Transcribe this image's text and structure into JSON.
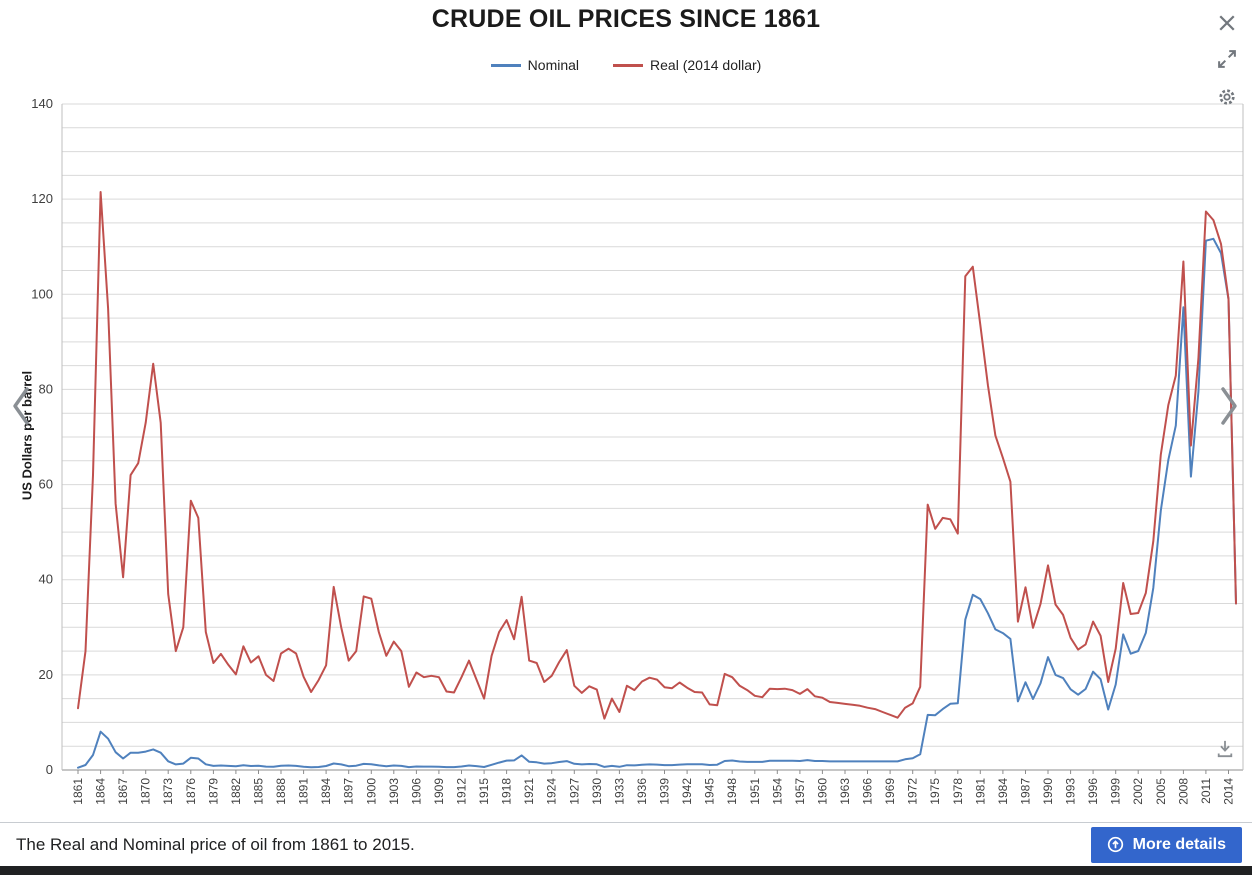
{
  "viewer": {
    "caption": "The Real and Nominal price of oil from 1861 to 2015.",
    "more_details_label": "More details",
    "accent_color": "#3366cc",
    "icon_color": "#72777d"
  },
  "chart_data": {
    "type": "line",
    "title": "CRUDE OIL PRICES SINCE 1861",
    "xlabel": "",
    "ylabel": "US Dollars per barrel",
    "ylim": [
      0,
      140
    ],
    "y_ticks": [
      0,
      20,
      40,
      60,
      80,
      100,
      120,
      140
    ],
    "gridline_step": 5,
    "grid": true,
    "legend_position": "top",
    "years_start": 1861,
    "years_end": 2015,
    "x_label_step": 3,
    "series": [
      {
        "name": "Nominal",
        "color": "#4F81BD",
        "values": [
          0.49,
          1.05,
          3.15,
          8.06,
          6.59,
          3.74,
          2.41,
          3.63,
          3.64,
          3.86,
          4.34,
          3.64,
          1.83,
          1.17,
          1.35,
          2.56,
          2.42,
          1.19,
          0.86,
          0.95,
          0.86,
          0.78,
          1.0,
          0.84,
          0.88,
          0.71,
          0.67,
          0.88,
          0.94,
          0.87,
          0.67,
          0.56,
          0.64,
          0.84,
          1.36,
          1.18,
          0.79,
          0.91,
          1.29,
          1.19,
          0.96,
          0.8,
          0.94,
          0.86,
          0.62,
          0.73,
          0.72,
          0.72,
          0.7,
          0.61,
          0.61,
          0.74,
          0.95,
          0.81,
          0.64,
          1.1,
          1.56,
          1.98,
          2.01,
          3.07,
          1.73,
          1.61,
          1.34,
          1.43,
          1.68,
          1.88,
          1.3,
          1.17,
          1.27,
          1.19,
          0.65,
          0.87,
          0.67,
          1.0,
          0.97,
          1.09,
          1.18,
          1.13,
          1.02,
          1.02,
          1.14,
          1.19,
          1.2,
          1.21,
          1.05,
          1.12,
          1.9,
          1.99,
          1.78,
          1.71,
          1.71,
          1.71,
          1.93,
          1.93,
          1.93,
          1.93,
          1.9,
          2.08,
          1.9,
          1.9,
          1.8,
          1.8,
          1.8,
          1.8,
          1.8,
          1.8,
          1.8,
          1.8,
          1.8,
          1.8,
          2.24,
          2.48,
          3.29,
          11.58,
          11.53,
          12.8,
          13.92,
          14.02,
          31.61,
          36.83,
          35.93,
          32.97,
          29.55,
          28.78,
          27.56,
          14.43,
          18.44,
          14.92,
          18.23,
          23.73,
          20.0,
          19.32,
          16.97,
          15.82,
          17.02,
          20.67,
          19.09,
          12.72,
          17.97,
          28.5,
          24.44,
          25.02,
          28.83,
          38.27,
          54.52,
          65.14,
          72.39,
          97.26,
          61.67,
          79.5,
          111.26,
          111.67,
          108.66,
          98.95,
          35.0
        ]
      },
      {
        "name": "Real (2014 dollar)",
        "color": "#C0504D",
        "values": [
          13,
          25,
          62,
          121.5,
          97,
          56,
          40.5,
          62,
          64.5,
          73,
          85.4,
          73,
          37,
          25,
          30,
          56.6,
          53,
          29,
          22.5,
          24.4,
          22.1,
          20.1,
          26,
          22.6,
          23.9,
          20,
          18.7,
          24.5,
          25.5,
          24.5,
          19.6,
          16.4,
          18.9,
          22,
          38.5,
          30,
          23,
          25,
          36.5,
          36,
          29,
          24,
          27,
          25,
          17.5,
          20.5,
          19.5,
          19.8,
          19.5,
          16.5,
          16.3,
          19.5,
          23,
          19,
          15,
          24,
          29,
          31.5,
          27.5,
          36.4,
          23,
          22.5,
          18.5,
          19.8,
          22.7,
          25.2,
          17.7,
          16.2,
          17.6,
          16.9,
          10.8,
          15,
          12.2,
          17.7,
          16.8,
          18.6,
          19.4,
          19,
          17.4,
          17.2,
          18.4,
          17.3,
          16.4,
          16.3,
          13.8,
          13.6,
          20.2,
          19.5,
          17.7,
          16.8,
          15.6,
          15.3,
          17.1,
          17,
          17.1,
          16.8,
          16,
          17,
          15.5,
          15.2,
          14.3,
          14.1,
          13.9,
          13.7,
          13.5,
          13.1,
          12.8,
          12.2,
          11.6,
          11,
          13.1,
          14,
          17.5,
          55.8,
          50.7,
          53,
          52.7,
          49.7,
          103.8,
          105.8,
          93.6,
          80.9,
          70.3,
          65.6,
          60.6,
          31.2,
          38.4,
          29.9,
          34.9,
          43,
          34.8,
          32.6,
          27.8,
          25.3,
          26.4,
          31.2,
          28.2,
          18.5,
          25.5,
          39.3,
          32.8,
          33,
          37.2,
          48.1,
          66.3,
          76.7,
          82.9,
          106.9,
          68.2,
          86.5,
          117.4,
          115.6,
          110.6,
          99,
          35
        ]
      }
    ]
  }
}
